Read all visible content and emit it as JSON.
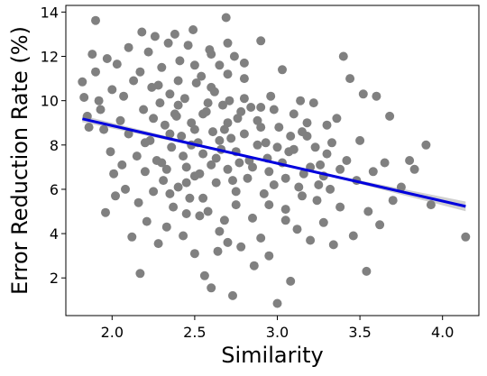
{
  "chart_data": {
    "type": "scatter",
    "title": "",
    "xlabel": "Similarity",
    "ylabel": "Error Reduction Rate (%)",
    "xlim": [
      1.72,
      4.22
    ],
    "ylim": [
      0.3,
      14.3
    ],
    "xticks": [
      {
        "value": 2.0,
        "label": "2.0"
      },
      {
        "value": 2.5,
        "label": "2.5"
      },
      {
        "value": 3.0,
        "label": "3.0"
      },
      {
        "value": 3.5,
        "label": "3.5"
      },
      {
        "value": 4.0,
        "label": "4.0"
      }
    ],
    "yticks": [
      {
        "value": 2,
        "label": "2"
      },
      {
        "value": 4,
        "label": "4"
      },
      {
        "value": 6,
        "label": "6"
      },
      {
        "value": 8,
        "label": "8"
      },
      {
        "value": 10,
        "label": "10"
      },
      {
        "value": 12,
        "label": "12"
      },
      {
        "value": 14,
        "label": "14"
      }
    ],
    "grid": false,
    "legend": "none",
    "point_color": "#808080",
    "line_color": "#0000dd",
    "band_color": "#c8c8c8",
    "regression": {
      "x": [
        1.82,
        4.14
      ],
      "y": [
        9.18,
        5.23
      ],
      "ci_halfwidth": [
        0.15,
        0.05,
        0.05,
        0.22
      ]
    },
    "points": [
      [
        1.82,
        10.85
      ],
      [
        1.83,
        10.15
      ],
      [
        1.85,
        9.3
      ],
      [
        1.86,
        8.8
      ],
      [
        1.88,
        12.1
      ],
      [
        1.9,
        13.62
      ],
      [
        1.9,
        11.3
      ],
      [
        1.92,
        10.0
      ],
      [
        1.93,
        9.6
      ],
      [
        1.95,
        8.7
      ],
      [
        1.96,
        4.95
      ],
      [
        1.97,
        11.9
      ],
      [
        1.99,
        7.7
      ],
      [
        2.0,
        10.5
      ],
      [
        2.01,
        6.7
      ],
      [
        2.02,
        5.7
      ],
      [
        2.03,
        11.65
      ],
      [
        2.05,
        9.1
      ],
      [
        2.06,
        7.1
      ],
      [
        2.07,
        10.2
      ],
      [
        2.08,
        6.0
      ],
      [
        2.1,
        12.4
      ],
      [
        2.1,
        8.5
      ],
      [
        2.12,
        3.85
      ],
      [
        2.13,
        10.9
      ],
      [
        2.15,
        7.5
      ],
      [
        2.16,
        5.4
      ],
      [
        2.17,
        2.2
      ],
      [
        2.17,
        11.3
      ],
      [
        2.18,
        13.1
      ],
      [
        2.19,
        9.6
      ],
      [
        2.2,
        6.8
      ],
      [
        2.21,
        4.55
      ],
      [
        2.22,
        12.2
      ],
      [
        2.23,
        8.2
      ],
      [
        2.24,
        10.6
      ],
      [
        2.25,
        5.9
      ],
      [
        2.26,
        12.9
      ],
      [
        2.27,
        7.3
      ],
      [
        2.28,
        3.55
      ],
      [
        2.29,
        9.9
      ],
      [
        2.3,
        11.5
      ],
      [
        2.31,
        6.4
      ],
      [
        2.32,
        8.9
      ],
      [
        2.33,
        4.3
      ],
      [
        2.34,
        12.6
      ],
      [
        2.35,
        10.3
      ],
      [
        2.36,
        7.9
      ],
      [
        2.37,
        5.2
      ],
      [
        2.38,
        13.0
      ],
      [
        2.39,
        9.3
      ],
      [
        2.4,
        6.1
      ],
      [
        2.41,
        11.8
      ],
      [
        2.42,
        8.4
      ],
      [
        2.43,
        3.9
      ],
      [
        2.44,
        10.1
      ],
      [
        2.45,
        7.0
      ],
      [
        2.46,
        12.5
      ],
      [
        2.47,
        5.6
      ],
      [
        2.48,
        9.0
      ],
      [
        2.49,
        13.2
      ],
      [
        2.5,
        6.6
      ],
      [
        2.51,
        10.8
      ],
      [
        2.52,
        8.1
      ],
      [
        2.53,
        4.8
      ],
      [
        2.54,
        11.1
      ],
      [
        2.55,
        7.6
      ],
      [
        2.56,
        2.1
      ],
      [
        2.57,
        9.5
      ],
      [
        2.58,
        5.0
      ],
      [
        2.59,
        12.3
      ],
      [
        2.6,
        1.55
      ],
      [
        2.61,
        8.6
      ],
      [
        2.62,
        10.4
      ],
      [
        2.63,
        6.3
      ],
      [
        2.64,
        3.2
      ],
      [
        2.65,
        11.6
      ],
      [
        2.66,
        7.8
      ],
      [
        2.67,
        9.8
      ],
      [
        2.68,
        4.6
      ],
      [
        2.69,
        13.75
      ],
      [
        2.7,
        6.9
      ],
      [
        2.71,
        10.0
      ],
      [
        2.72,
        8.3
      ],
      [
        2.73,
        1.2
      ],
      [
        2.74,
        12.0
      ],
      [
        2.75,
        5.3
      ],
      [
        2.76,
        9.2
      ],
      [
        2.77,
        7.2
      ],
      [
        2.78,
        3.4
      ],
      [
        2.8,
        11.0
      ],
      [
        2.82,
        6.5
      ],
      [
        2.84,
        9.7
      ],
      [
        2.86,
        2.55
      ],
      [
        2.88,
        8.0
      ],
      [
        2.9,
        12.7
      ],
      [
        2.92,
        5.8
      ],
      [
        2.94,
        7.4
      ],
      [
        2.95,
        3.0
      ],
      [
        2.96,
        10.2
      ],
      [
        2.98,
        6.2
      ],
      [
        3.0,
        0.85
      ],
      [
        3.01,
        8.8
      ],
      [
        3.03,
        11.4
      ],
      [
        3.05,
        5.1
      ],
      [
        3.07,
        7.7
      ],
      [
        3.08,
        1.85
      ],
      [
        3.1,
        9.4
      ],
      [
        3.12,
        4.2
      ],
      [
        3.14,
        10.0
      ],
      [
        3.16,
        6.7
      ],
      [
        3.18,
        8.4
      ],
      [
        3.2,
        3.7
      ],
      [
        3.22,
        9.9
      ],
      [
        3.24,
        5.5
      ],
      [
        3.26,
        7.1
      ],
      [
        3.28,
        4.5
      ],
      [
        3.3,
        8.9
      ],
      [
        3.32,
        6.0
      ],
      [
        3.34,
        3.5
      ],
      [
        3.36,
        9.2
      ],
      [
        3.38,
        5.2
      ],
      [
        3.4,
        12.0
      ],
      [
        3.42,
        7.3
      ],
      [
        3.44,
        11.0
      ],
      [
        3.46,
        3.9
      ],
      [
        3.48,
        6.4
      ],
      [
        3.5,
        8.2
      ],
      [
        3.52,
        10.3
      ],
      [
        3.54,
        2.3
      ],
      [
        3.55,
        5.0
      ],
      [
        3.58,
        6.8
      ],
      [
        3.6,
        10.2
      ],
      [
        3.62,
        4.4
      ],
      [
        3.65,
        7.2
      ],
      [
        3.68,
        9.3
      ],
      [
        3.7,
        5.5
      ],
      [
        3.75,
        6.1
      ],
      [
        3.8,
        7.3
      ],
      [
        3.83,
        6.9
      ],
      [
        3.9,
        8.0
      ],
      [
        3.93,
        5.3
      ],
      [
        4.14,
        3.85
      ],
      [
        2.25,
        9.2
      ],
      [
        2.3,
        7.2
      ],
      [
        2.35,
        8.5
      ],
      [
        2.4,
        9.8
      ],
      [
        2.45,
        6.3
      ],
      [
        2.5,
        8.7
      ],
      [
        2.55,
        9.4
      ],
      [
        2.6,
        7.1
      ],
      [
        2.65,
        8.2
      ],
      [
        2.7,
        9.0
      ],
      [
        2.75,
        7.7
      ],
      [
        2.8,
        8.5
      ],
      [
        2.85,
        7.0
      ],
      [
        2.9,
        8.8
      ],
      [
        2.95,
        6.8
      ],
      [
        3.0,
        7.9
      ],
      [
        3.05,
        6.5
      ],
      [
        3.1,
        7.8
      ],
      [
        3.15,
        8.6
      ],
      [
        3.2,
        7.0
      ],
      [
        3.25,
        6.2
      ],
      [
        3.3,
        7.6
      ],
      [
        2.2,
        8.1
      ],
      [
        2.28,
        10.7
      ],
      [
        2.33,
        6.9
      ],
      [
        2.38,
        9.4
      ],
      [
        2.43,
        7.5
      ],
      [
        2.48,
        8.0
      ],
      [
        2.53,
        6.7
      ],
      [
        2.58,
        9.9
      ],
      [
        2.63,
        7.4
      ],
      [
        2.68,
        8.7
      ],
      [
        2.73,
        6.4
      ],
      [
        2.78,
        9.5
      ],
      [
        2.83,
        7.3
      ],
      [
        2.88,
        9.1
      ],
      [
        2.93,
        8.1
      ],
      [
        2.98,
        9.6
      ],
      [
        3.03,
        7.2
      ],
      [
        3.08,
        8.4
      ],
      [
        3.13,
        6.1
      ],
      [
        3.18,
        9.0
      ],
      [
        3.23,
        7.9
      ],
      [
        3.28,
        6.6
      ],
      [
        3.33,
        8.1
      ],
      [
        3.38,
        6.9
      ],
      [
        2.4,
        10.9
      ],
      [
        2.5,
        11.6
      ],
      [
        2.6,
        10.6
      ],
      [
        2.7,
        11.2
      ],
      [
        2.8,
        10.1
      ],
      [
        2.9,
        9.7
      ],
      [
        2.45,
        4.9
      ],
      [
        2.55,
        5.6
      ],
      [
        2.65,
        4.1
      ],
      [
        2.75,
        5.9
      ],
      [
        2.85,
        4.7
      ],
      [
        2.95,
        5.3
      ],
      [
        3.05,
        4.6
      ],
      [
        3.15,
        5.7
      ],
      [
        2.35,
        5.8
      ],
      [
        2.6,
        12.1
      ],
      [
        2.7,
        12.6
      ],
      [
        2.8,
        11.7
      ],
      [
        2.5,
        3.1
      ],
      [
        2.7,
        3.6
      ],
      [
        2.9,
        3.8
      ]
    ]
  }
}
